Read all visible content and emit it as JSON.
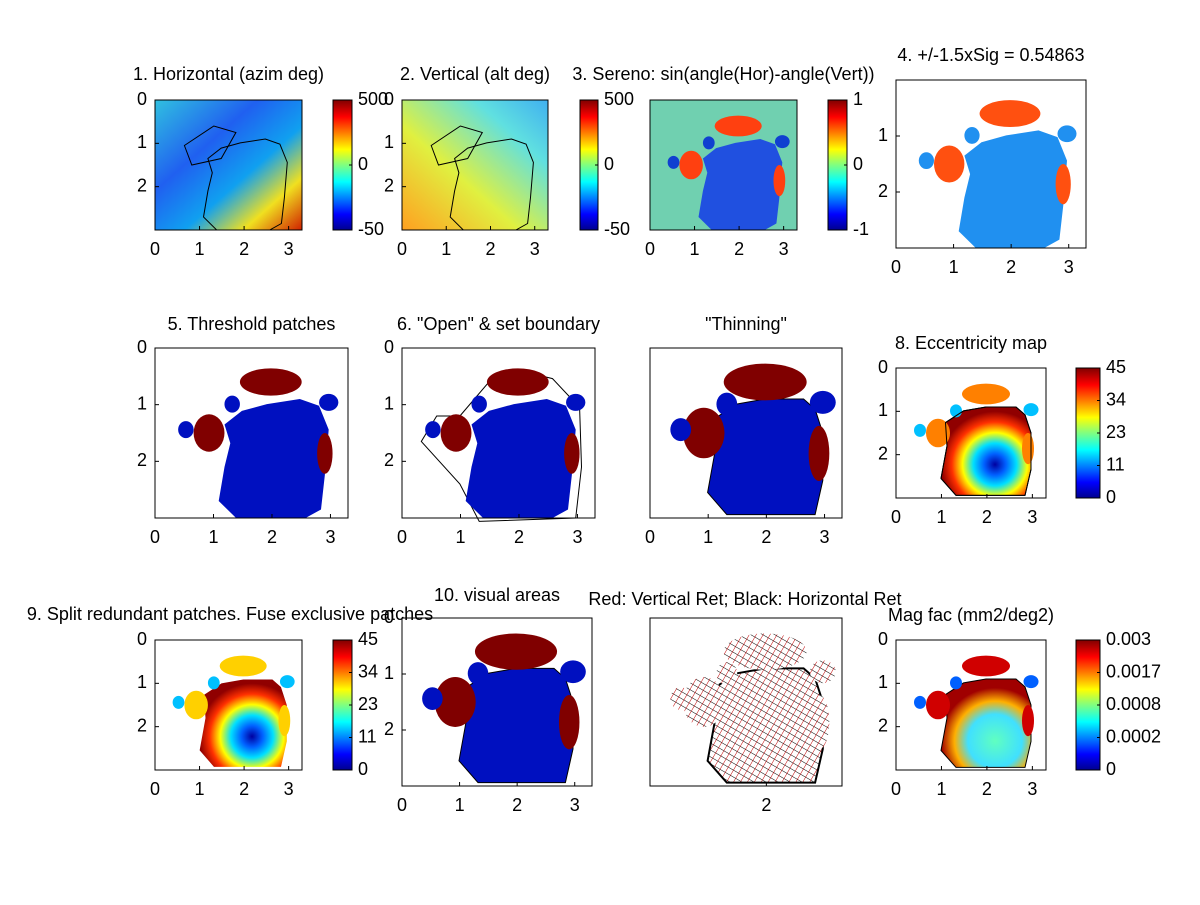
{
  "chart_data": [
    {
      "type": "image",
      "title": "1. Horizontal (azim deg)",
      "xlim": [
        0,
        3.3
      ],
      "ylim": [
        0,
        3
      ],
      "xticks": [
        0,
        1,
        2,
        3
      ],
      "yticks": [
        0,
        1,
        2
      ],
      "colorbar_ticks": [
        500,
        0,
        -50
      ]
    },
    {
      "type": "image",
      "title": "2. Vertical (alt deg)",
      "xlim": [
        0,
        3.3
      ],
      "ylim": [
        0,
        3
      ],
      "xticks": [
        0,
        1,
        2,
        3
      ],
      "yticks": [
        0,
        1,
        2
      ],
      "colorbar_ticks": [
        500,
        0,
        -50
      ]
    },
    {
      "type": "image",
      "title": "3. Sereno: sin(angle(Hor)-angle(Vert))",
      "xlim": [
        0,
        3.3
      ],
      "ylim": [
        0,
        3
      ],
      "xticks": [
        0,
        1,
        2,
        3
      ],
      "yticks": [],
      "colorbar_ticks": [
        1,
        0,
        -1
      ]
    },
    {
      "type": "image",
      "title": "4. +/-1.5xSig = 0.54863",
      "xlim": [
        0,
        3.3
      ],
      "ylim": [
        0,
        3
      ],
      "xticks": [
        0,
        1,
        2,
        3
      ],
      "yticks": [
        1,
        2
      ]
    },
    {
      "type": "image",
      "title": "5. Threshold patches",
      "xlim": [
        0,
        3.3
      ],
      "ylim": [
        0,
        3
      ],
      "xticks": [
        0,
        1,
        2,
        3
      ],
      "yticks": [
        0,
        1,
        2
      ]
    },
    {
      "type": "image",
      "title": "6. \"Open\" & set boundary",
      "xlim": [
        0,
        3.3
      ],
      "ylim": [
        0,
        3
      ],
      "xticks": [
        0,
        1,
        2,
        3
      ],
      "yticks": [
        0,
        1,
        2
      ]
    },
    {
      "type": "image",
      "title": "\"Thinning\"",
      "xlim": [
        0,
        3.3
      ],
      "ylim": [
        0,
        3
      ],
      "xticks": [
        0,
        1,
        2,
        3
      ],
      "yticks": []
    },
    {
      "type": "image",
      "title": "8. Eccentricity map",
      "xlim": [
        0,
        3.3
      ],
      "ylim": [
        0,
        3
      ],
      "xticks": [
        0,
        1,
        2,
        3
      ],
      "yticks": [
        0,
        1,
        2
      ],
      "colorbar_ticks": [
        45,
        34,
        23,
        11,
        0
      ]
    },
    {
      "type": "image",
      "title": "9. Split redundant patches. Fuse exclusive patches",
      "xlim": [
        0,
        3.3
      ],
      "ylim": [
        0,
        3
      ],
      "xticks": [
        0,
        1,
        2,
        3
      ],
      "yticks": [
        0,
        1,
        2
      ],
      "colorbar_ticks": [
        45,
        34,
        23,
        11,
        0
      ]
    },
    {
      "type": "image",
      "title": "10. visual areas",
      "xlim": [
        0,
        3.3
      ],
      "ylim": [
        0,
        3
      ],
      "xticks": [
        0,
        1,
        2,
        3
      ],
      "yticks": [
        0,
        1,
        2
      ]
    },
    {
      "type": "image",
      "title": "Red: Vertical Ret;  Black: Horizontal Ret",
      "xlim": [
        0,
        3.3
      ],
      "ylim": [
        0,
        3
      ],
      "xticks": [
        2
      ],
      "yticks": []
    },
    {
      "type": "image",
      "title": "Mag fac (mm2/deg2)",
      "xlim": [
        0,
        3.3
      ],
      "ylim": [
        0,
        3
      ],
      "xticks": [
        0,
        1,
        2,
        3
      ],
      "yticks": [
        0,
        1,
        2
      ],
      "colorbar_ticks": [
        0.003,
        0.0017,
        0.0008,
        0.0002,
        0
      ]
    }
  ]
}
